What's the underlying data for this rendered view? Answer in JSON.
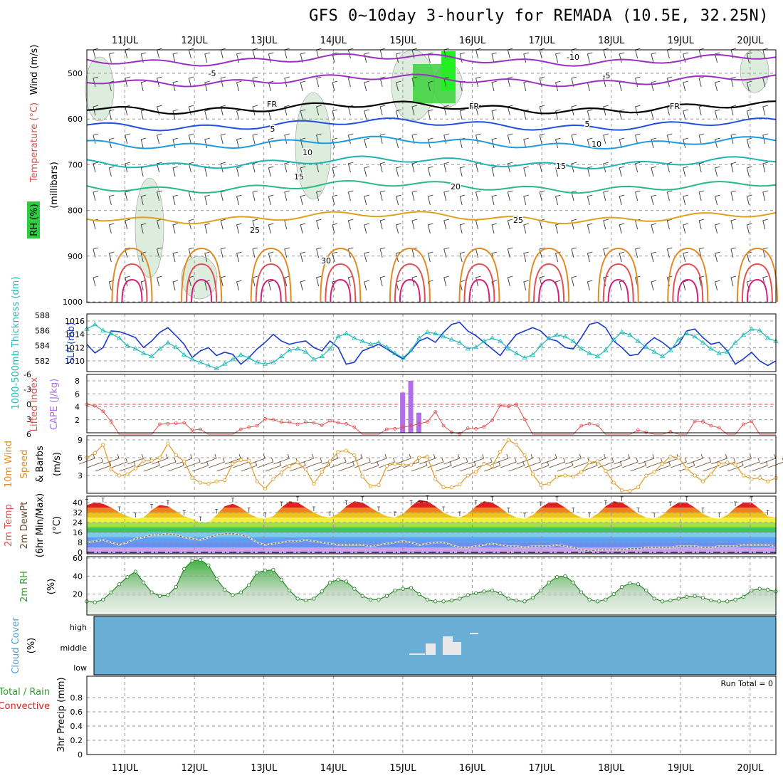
{
  "title": "GFS 0~10day 3-hourly for REMADA (10.5E, 32.25N)",
  "chart_data": {
    "type": "line",
    "dates": [
      "11JUL",
      "12JUL",
      "13JUL",
      "14JUL",
      "15JUL",
      "16JUL",
      "17JUL",
      "18JUL",
      "19JUL",
      "20JUL"
    ],
    "panels": [
      {
        "id": "profile",
        "ylabel_parts": [
          {
            "text": "Wind (m/s)",
            "color": "#000000"
          },
          {
            "text": "Temperature (°C)",
            "color": "#e05050"
          },
          {
            "text": "RH (%)",
            "color": "#000000"
          },
          {
            "text": "(millibars)",
            "color": "#000000"
          }
        ],
        "yticks": [
          "500",
          "600",
          "700",
          "800",
          "900",
          "1000"
        ],
        "isotherm_labels": [
          "-10",
          "-5",
          "FR",
          "5",
          "10",
          "15",
          "20",
          "25",
          "30"
        ],
        "isotherms": [
          {
            "label": "-10",
            "color": "#9b30c0",
            "base_mb": 470
          },
          {
            "label": "-5",
            "color": "#9b30c0",
            "base_mb": 515
          },
          {
            "label": "FR",
            "color": "#000000",
            "base_mb": 575
          },
          {
            "label": "5",
            "color": "#2050e0",
            "base_mb": 612
          },
          {
            "label": "10",
            "color": "#1e9be0",
            "base_mb": 652
          },
          {
            "label": "15",
            "color": "#1fb3b3",
            "base_mb": 695
          },
          {
            "label": "20",
            "color": "#2ab88a",
            "base_mb": 748
          },
          {
            "label": "25",
            "color": "#e0a020",
            "base_mb": 815
          }
        ]
      },
      {
        "id": "slp-thickness",
        "ylabel_left": "1000-500mb Thickness (dm)",
        "ylabel_right": "SLP (mb)",
        "yticks_left": [
          "588",
          "586",
          "584",
          "582"
        ],
        "yticks_right": [
          "1016",
          "1014",
          "1012",
          "1010"
        ],
        "series": [
          {
            "name": "SLP (mb)",
            "color": "#1a3cc8",
            "values": [
              1012.5,
              1011.2,
              1012.0,
              1014.5,
              1014.4,
              1014.0,
              1013.5,
              1012.0,
              1013.0,
              1014.3,
              1015.0,
              1013.8,
              1012.5,
              1010.5,
              1011.5,
              1012.0,
              1010.8,
              1011.3,
              1011.0,
              1009.5,
              1010.5,
              1011.8,
              1012.8,
              1014.0,
              1013.0,
              1012.5,
              1012.8,
              1013.0,
              1012.0,
              1011.5,
              1013.0,
              1012.0,
              1009.5,
              1009.8,
              1011.5,
              1012.0,
              1012.5,
              1011.8,
              1011.0,
              1010.3,
              1011.5,
              1013.0,
              1013.5,
              1012.8,
              1014.3,
              1015.5,
              1015.8,
              1014.5,
              1013.8,
              1012.8,
              1011.8,
              1010.8,
              1012.5,
              1014.0,
              1014.5,
              1015.0,
              1014.5,
              1013.3,
              1013.0,
              1012.0,
              1011.8,
              1013.5,
              1015.5,
              1015.8,
              1015.0,
              1013.0,
              1012.0,
              1010.8,
              1011.0,
              1012.5,
              1013.5,
              1012.8,
              1011.8,
              1012.5,
              1014.5,
              1014.8,
              1013.5,
              1012.5,
              1012.8,
              1011.5,
              1009.5,
              1010.3,
              1011.3,
              1010.0,
              1009.3,
              1010.0
            ]
          },
          {
            "name": "1000-500mb Thickness (dm)",
            "color": "#20b8b8",
            "values": [
              586.2,
              586.8,
              586.0,
              585.6,
              585.0,
              584.0,
              583.6,
              583.0,
              582.6,
              583.6,
              584.4,
              583.8,
              582.8,
              582.2,
              581.8,
              581.4,
              581.0,
              581.6,
              582.2,
              582.8,
              582.4,
              581.8,
              581.6,
              581.8,
              582.6,
              583.4,
              583.6,
              583.2,
              582.2,
              582.6,
              583.6,
              585.2,
              585.6,
              585.0,
              584.6,
              584.2,
              584.4,
              583.8,
              583.0,
              582.4,
              583.4,
              585.0,
              585.8,
              585.6,
              585.2,
              584.8,
              584.4,
              583.6,
              583.8,
              584.6,
              585.0,
              584.6,
              583.6,
              583.0,
              582.4,
              582.8,
              584.0,
              585.0,
              585.4,
              585.2,
              584.6,
              583.6,
              583.0,
              582.6,
              583.4,
              584.8,
              585.8,
              585.4,
              584.6,
              583.8,
              583.2,
              582.6,
              583.4,
              584.8,
              585.6,
              585.2,
              584.4,
              583.6,
              583.0,
              583.2,
              584.4,
              585.4,
              586.2,
              586.0,
              585.0,
              584.6
            ]
          }
        ]
      },
      {
        "id": "cape-li",
        "ylabel_left": "Lifted Index",
        "ylabel_right": "CAPE (J/kg)",
        "yticks_left": [
          "-6",
          "-3",
          "0",
          "3",
          "6"
        ],
        "yticks_right": [
          "8",
          "6",
          "4",
          "2"
        ],
        "li_values": [
          0.0,
          0.3,
          1.4,
          3.5,
          6,
          6,
          6,
          6,
          6,
          4.0,
          3.9,
          3.8,
          3.7,
          5.2,
          5.0,
          6,
          6,
          6,
          6,
          5.0,
          4.6,
          4.3,
          2.9,
          3.1,
          3.6,
          3.6,
          4.0,
          3.6,
          3.7,
          4.2,
          3.3,
          3.7,
          3.9,
          4.6,
          6,
          6,
          6,
          5.0,
          4.9,
          4.6,
          4.3,
          3.9,
          3.5,
          1.5,
          4.3,
          5.6,
          5.9,
          4.8,
          4.9,
          4.5,
          3.2,
          0.2,
          0.4,
          0.0,
          3.0,
          6,
          6,
          6,
          6,
          6,
          6,
          4.3,
          3.9,
          4.2,
          6,
          6,
          6,
          6,
          5.2,
          5.6,
          6,
          6,
          5.5,
          6,
          6,
          3.4,
          3.5,
          4.3,
          4.7,
          6,
          6,
          4.0,
          3.4,
          6,
          6,
          6
        ],
        "cape_bars": [
          {
            "step": 39,
            "value": 6.2
          },
          {
            "step": 40,
            "value": 8.0
          },
          {
            "step": 41,
            "value": 3.1
          }
        ]
      },
      {
        "id": "wind10m",
        "ylabel": "10m Wind Speed & Barbs (m/s)",
        "yticks": [
          "9",
          "6",
          "3"
        ],
        "values": [
          6.0,
          6.8,
          8.2,
          4.0,
          3.0,
          3.2,
          4.2,
          5.5,
          5.5,
          6.0,
          8.4,
          6.4,
          5.4,
          2.6,
          1.8,
          1.6,
          2.0,
          2.2,
          5.0,
          5.6,
          5.5,
          2.0,
          0.8,
          2.4,
          3.5,
          4.6,
          5.2,
          4.0,
          1.6,
          3.6,
          5.4,
          7.0,
          7.2,
          6.4,
          2.8,
          1.2,
          1.4,
          4.6,
          5.0,
          4.8,
          4.8,
          6.0,
          6.2,
          2.4,
          1.0,
          1.0,
          1.5,
          3.0,
          3.6,
          5.0,
          4.6,
          7.0,
          9.0,
          8.2,
          6.4,
          3.2,
          1.4,
          1.6,
          2.8,
          3.0,
          2.8,
          3.6,
          5.2,
          5.4,
          3.8,
          1.8,
          0.5,
          0.4,
          1.0,
          3.0,
          3.6,
          5.0,
          6.2,
          6.0,
          4.2,
          3.0,
          2.0,
          3.2,
          5.0,
          5.2,
          4.8,
          3.0,
          2.4,
          2.6,
          2.0,
          2.6
        ]
      },
      {
        "id": "temp2m",
        "ylabel": "2m Temp / 2m DewPt (6hr Min/Max) (°C)",
        "yticks": [
          "40",
          "32",
          "24",
          "16",
          "8",
          "0"
        ],
        "temp": [
          38,
          40,
          39,
          36,
          32,
          29,
          27,
          28,
          34,
          38,
          37,
          33,
          29,
          27,
          24,
          24,
          30,
          37,
          39,
          36,
          31,
          28,
          27,
          29,
          36,
          41,
          40,
          36,
          32,
          29,
          28,
          31,
          37,
          41,
          40,
          36,
          32,
          29,
          28,
          31,
          37,
          42,
          41,
          37,
          32,
          29,
          28,
          31,
          37,
          41,
          40,
          36,
          31,
          28,
          27,
          30,
          36,
          40,
          40,
          36,
          31,
          28,
          27,
          31,
          37,
          41,
          40,
          36,
          31,
          28,
          27,
          30,
          36,
          40,
          40,
          36,
          31,
          28,
          27,
          30,
          36,
          40,
          40,
          35,
          29,
          28
        ],
        "dewpt": [
          8,
          9,
          10,
          8,
          6,
          8,
          11,
          12,
          14,
          14,
          15,
          14,
          12,
          11,
          10,
          12,
          14,
          15,
          15,
          14,
          12,
          8,
          6,
          7,
          8,
          9,
          9,
          10,
          9,
          8,
          7,
          6,
          6,
          6,
          6,
          5,
          6,
          7,
          8,
          9,
          8,
          6,
          7,
          8,
          8,
          6,
          4,
          4,
          5,
          6,
          7,
          6,
          5,
          5,
          4,
          5,
          5,
          5,
          6,
          5,
          4,
          2,
          1,
          2,
          2,
          2,
          2,
          3,
          3,
          4,
          4,
          4,
          4,
          5,
          5,
          5,
          4,
          4,
          5,
          5,
          5,
          6,
          6,
          6,
          6,
          5
        ]
      },
      {
        "id": "rh2m",
        "ylabel": "2m RH (%)",
        "yticks": [
          "60",
          "40",
          "20"
        ],
        "values": [
          12,
          11,
          14,
          22,
          31,
          39,
          45,
          33,
          22,
          18,
          19,
          28,
          48,
          57,
          58,
          52,
          37,
          25,
          19,
          22,
          30,
          44,
          46,
          47,
          36,
          24,
          15,
          13,
          15,
          23,
          33,
          36,
          34,
          26,
          18,
          14,
          14,
          18,
          24,
          26,
          27,
          20,
          14,
          12,
          12,
          13,
          15,
          19,
          21,
          23,
          24,
          21,
          15,
          13,
          12,
          16,
          24,
          33,
          39,
          40,
          33,
          22,
          14,
          12,
          14,
          20,
          28,
          32,
          31,
          24,
          15,
          12,
          13,
          15,
          17,
          18,
          16,
          13,
          12,
          12,
          14,
          17,
          24,
          26,
          25,
          23
        ]
      },
      {
        "id": "cloud",
        "ylabel": "Cloud Cover (%)",
        "yticks": [
          "high",
          "middle",
          "low"
        ],
        "background": "#6aaed6"
      },
      {
        "id": "precip",
        "ylabel_left": "Total / Rain",
        "ylabel_left2": "Convective",
        "ylabel": "3hr Precip (mm)",
        "yticks": [
          "0.8",
          "0.6",
          "0.4",
          "0.2",
          "0"
        ],
        "run_total": "Run Total = 0",
        "values": []
      }
    ]
  }
}
